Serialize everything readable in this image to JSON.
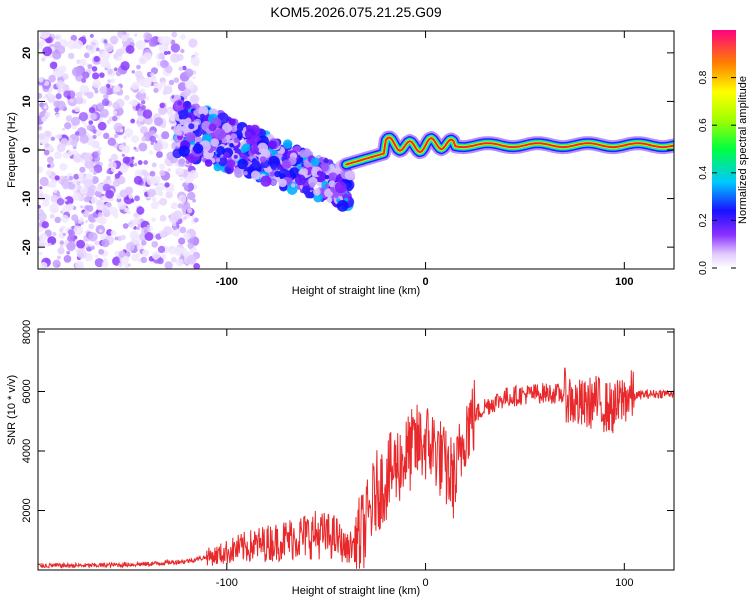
{
  "chart_data": [
    {
      "type": "heatmap",
      "title": "KOM5.2026.075.21.25.G09",
      "xlabel": "Height of straight line (km)",
      "ylabel": "Frequency (Hz)",
      "xlim": [
        -195,
        125
      ],
      "ylim": [
        -24.5,
        24.5
      ],
      "xticks": [
        -100,
        0,
        100
      ],
      "yticks": [
        -20,
        -10,
        0,
        10,
        20
      ],
      "xtick_labels": [
        "-100",
        "0",
        "100"
      ],
      "ytick_labels": [
        "-20",
        "-10",
        "0",
        "10",
        "20"
      ],
      "colorbar": {
        "label": "Normalized spectral amplitude",
        "range": [
          0,
          1
        ],
        "ticks": [
          0.0,
          0.2,
          0.4,
          0.6,
          0.8
        ],
        "tick_labels": [
          "0.0",
          "0.2",
          "0.4",
          "0.6",
          "0.8"
        ]
      },
      "regions": [
        {
          "name": "scatter",
          "x_range": [
            -195,
            -115
          ],
          "freq_range": [
            -24,
            24
          ],
          "amplitude": 0.08
        },
        {
          "name": "descending-band",
          "x_range": [
            -125,
            -38
          ],
          "freq_center": [
            5,
            -8
          ],
          "amplitude": 0.2
        },
        {
          "name": "tone",
          "x_range": [
            -40,
            125
          ],
          "freq_center": 1,
          "amplitude": 0.9
        }
      ]
    },
    {
      "type": "line",
      "xlabel": "Height of straight line (km)",
      "ylabel": "SNR (10 * v/v)",
      "xlim": [
        -195,
        125
      ],
      "ylim": [
        0,
        8100
      ],
      "xticks": [
        -100,
        0,
        100
      ],
      "yticks": [
        2000,
        4000,
        6000,
        8000
      ],
      "xtick_labels": [
        "-100",
        "0",
        "100"
      ],
      "ytick_labels": [
        "2000",
        "4000",
        "6000",
        "8000"
      ],
      "series": [
        {
          "name": "SNR",
          "color": "#e8282a",
          "x": [
            -195,
            -170,
            -140,
            -120,
            -105,
            -95,
            -85,
            -75,
            -65,
            -55,
            -45,
            -40,
            -35,
            -30,
            -25,
            -20,
            -15,
            -10,
            -5,
            0,
            5,
            10,
            15,
            20,
            25,
            30,
            40,
            50,
            60,
            70,
            75,
            80,
            85,
            90,
            95,
            100,
            110,
            125
          ],
          "values": [
            150,
            150,
            200,
            300,
            500,
            700,
            850,
            950,
            1100,
            1200,
            1100,
            700,
            900,
            1500,
            2600,
            3000,
            3500,
            3800,
            4200,
            4300,
            4100,
            3400,
            3000,
            4800,
            5200,
            5500,
            5800,
            5900,
            5950,
            5900,
            5600,
            5500,
            5700,
            5500,
            5400,
            5800,
            5900,
            5950
          ]
        }
      ]
    }
  ]
}
